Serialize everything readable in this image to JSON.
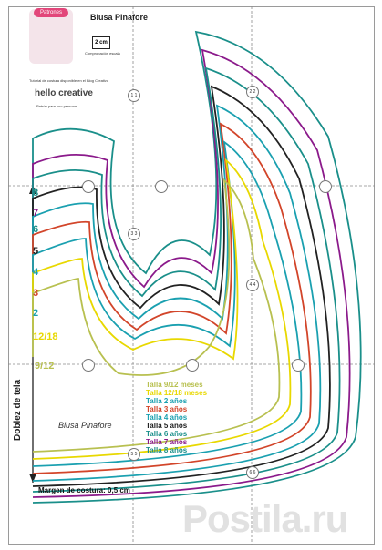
{
  "header": {
    "logo_badge": "Patrones",
    "title": "Blusa Pinafore",
    "scale": "2 cm",
    "scale_caption": "Comprobación escala",
    "tutorial": "Tutorial de costura disponible en el Blog Creativo",
    "brand": "hello creative",
    "brand_sub": "Patrón para uso personal."
  },
  "sizes": [
    {
      "label": "8",
      "color": "#1a8f8a"
    },
    {
      "label": "7",
      "color": "#8b1a8b"
    },
    {
      "label": "6",
      "color": "#1a8f8a"
    },
    {
      "label": "5",
      "color": "#222222"
    },
    {
      "label": "4",
      "color": "#1aa0b0"
    },
    {
      "label": "3",
      "color": "#d2452a"
    },
    {
      "label": "2",
      "color": "#1aa0b0"
    },
    {
      "label": "12/18",
      "color": "#e8d800"
    },
    {
      "label": "9/12",
      "color": "#b8c050"
    }
  ],
  "legend": [
    {
      "label": "Talla 9/12 meses",
      "color": "#b8c050"
    },
    {
      "label": "Talla 12/18 meses",
      "color": "#e8d800"
    },
    {
      "label": "Talla 2 años",
      "color": "#1aa0b0"
    },
    {
      "label": "Talla 3 años",
      "color": "#d2452a"
    },
    {
      "label": "Talla 4 años",
      "color": "#1aa0b0"
    },
    {
      "label": "Talla 5 años",
      "color": "#222222"
    },
    {
      "label": "Talla 6 años",
      "color": "#1a8f8a"
    },
    {
      "label": "Talla 7 años",
      "color": "#8b1a8b"
    },
    {
      "label": "Talla 8 años",
      "color": "#1a8f8a"
    }
  ],
  "fold_label": "Doblez de tela",
  "pattern_name": "Blusa Pinafore",
  "margin": "Margen de costura: 0,5 cm",
  "watermark": "Postila.ru",
  "markers": [
    "1 1",
    "2 2",
    "3 3",
    "4 4",
    "5 5",
    "6 6"
  ]
}
